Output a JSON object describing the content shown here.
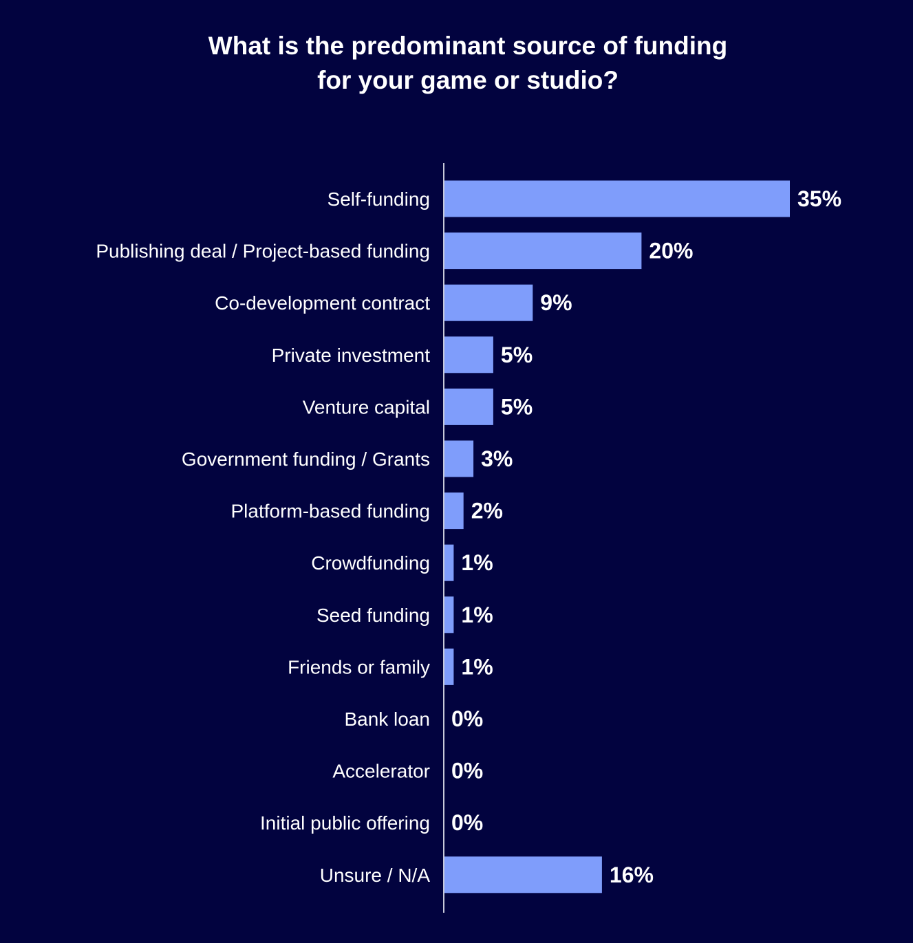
{
  "chart_data": {
    "type": "bar",
    "orientation": "horizontal",
    "title_lines": [
      "What is the predominant source of funding",
      "for your game or studio?"
    ],
    "categories": [
      "Self-funding",
      "Publishing deal / Project-based funding",
      "Co-development contract",
      "Private investment",
      "Venture capital",
      "Government funding / Grants",
      "Platform-based funding",
      "Crowdfunding",
      "Seed funding",
      "Friends or family",
      "Bank loan",
      "Accelerator",
      "Initial public offering",
      "Unsure / N/A"
    ],
    "values": [
      35,
      20,
      9,
      5,
      5,
      3,
      2,
      1,
      1,
      1,
      0,
      0,
      0,
      16
    ],
    "value_labels": [
      "35%",
      "20%",
      "9%",
      "5%",
      "5%",
      "3%",
      "2%",
      "1%",
      "1%",
      "1%",
      "0%",
      "0%",
      "0%",
      "16%"
    ],
    "unit": "%",
    "xlim": [
      0,
      35
    ],
    "grid": false,
    "legend": "none",
    "colors": {
      "background": "#02033f",
      "bar": "#7f9dfb",
      "text": "#ffffff",
      "axis": "#c7c9d9"
    }
  }
}
